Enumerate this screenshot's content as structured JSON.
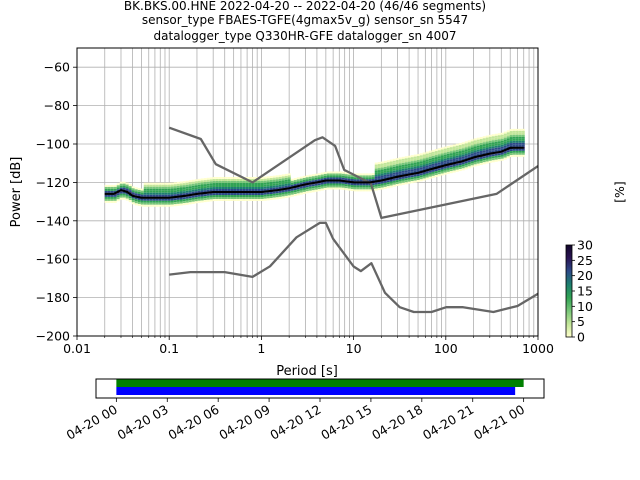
{
  "title_lines": [
    "BK.BKS.00.HNE   2022-04-20 -- 2022-04-20  (46/46 segments)",
    "sensor_type FBAES-TGFE(4gmax5v_g) sensor_sn 5547",
    "datalogger_type Q330HR-GFE datalogger_sn 4007"
  ],
  "colorbar": {
    "label": "[%]",
    "ticks": [
      "0",
      "5",
      "10",
      "15",
      "20",
      "25",
      "30"
    ],
    "colors": [
      "#ffffcc",
      "#c2e699",
      "#78c679",
      "#31a354",
      "#1d7f6f",
      "#2c4a88",
      "#2a1454",
      "#12062a"
    ]
  },
  "chart_data": [
    {
      "type": "line",
      "xlabel": "Period [s]",
      "ylabel": "Power [dB]",
      "xscale": "log",
      "xlim": [
        0.01,
        1000
      ],
      "ylim": [
        -200,
        -50
      ],
      "x_tick_labels": [
        "0.01",
        "0.1",
        "1",
        "10",
        "100",
        "1000"
      ],
      "y_ticks": [
        -200,
        -180,
        -160,
        -140,
        -120,
        -100,
        -80,
        -60
      ],
      "y_tick_labels": [
        "−200",
        "−180",
        "−160",
        "−140",
        "−120",
        "−100",
        "−80",
        "−60"
      ],
      "grid": true,
      "series": [
        {
          "role": "mode",
          "color": "#000000",
          "x": [
            0.02,
            0.025,
            0.03,
            0.035,
            0.04,
            0.05,
            0.06,
            0.08,
            0.1,
            0.15,
            0.2,
            0.3,
            0.5,
            0.8,
            1,
            1.5,
            2,
            3,
            4,
            5,
            7,
            10,
            15,
            20,
            30,
            50,
            70,
            100,
            150,
            200,
            300,
            400,
            500,
            700
          ],
          "y": [
            -126,
            -126,
            -124,
            -125,
            -127,
            -128,
            -128,
            -128,
            -128,
            -127,
            -126,
            -125,
            -125,
            -125,
            -125,
            -124,
            -123,
            -121,
            -120,
            -119,
            -119,
            -120,
            -120,
            -119,
            -117,
            -115,
            -113,
            -111,
            -109,
            -107,
            -105,
            -104,
            -102,
            -102
          ]
        },
        {
          "role": "noise_model_high",
          "color": "#666666",
          "x": [
            0.1,
            0.22,
            0.32,
            0.8,
            3.8,
            4.6,
            6.3,
            7.9,
            15.4,
            20,
            354.8,
            1000
          ],
          "y": [
            -91.5,
            -97.4,
            -110.5,
            -120,
            -98,
            -96.5,
            -101,
            -113.5,
            -120.5,
            -138.5,
            -126,
            -111.5
          ]
        },
        {
          "role": "noise_model_low",
          "color": "#666666",
          "x": [
            0.1,
            0.17,
            0.4,
            0.8,
            1.24,
            2.4,
            4.3,
            5,
            6,
            10,
            12,
            15.6,
            21.9,
            31.6,
            45,
            70,
            101,
            154,
            328,
            600,
            1000
          ],
          "y": [
            -168,
            -166.7,
            -166.7,
            -169.2,
            -163.7,
            -148.6,
            -141.1,
            -141.1,
            -149.4,
            -163.8,
            -166.2,
            -162.1,
            -177.5,
            -185,
            -187.5,
            -187.5,
            -185,
            -185,
            -187.5,
            -184.4,
            -178
          ]
        }
      ]
    },
    {
      "type": "timeline",
      "x_tick_labels": [
        "04-20 00",
        "04-20 03",
        "04-20 06",
        "04-20 09",
        "04-20 12",
        "04-20 15",
        "04-20 18",
        "04-20 21",
        "04-21 00"
      ],
      "x_tick_hours": [
        0,
        3,
        6,
        9,
        12,
        15,
        18,
        21,
        24
      ],
      "xlim_hours": [
        -1.2,
        25.2
      ],
      "bars": [
        {
          "color": "#008000",
          "start_hour": 0,
          "end_hour": 24
        },
        {
          "color": "#0000ff",
          "start_hour": 0,
          "end_hour": 23.5
        }
      ]
    }
  ]
}
